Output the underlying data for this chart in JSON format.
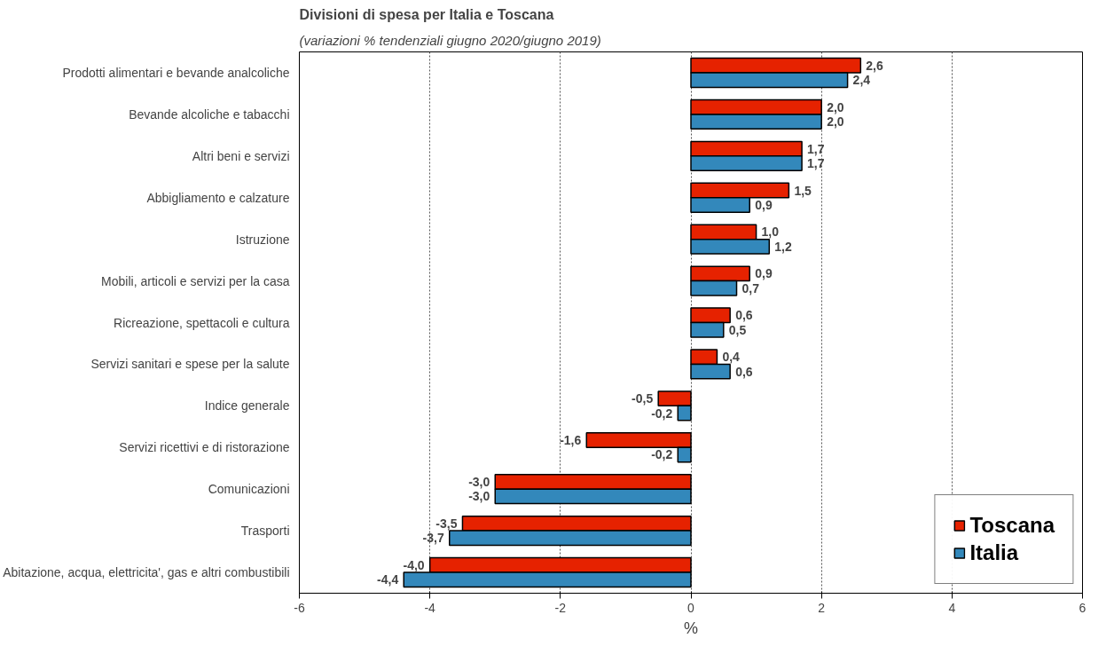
{
  "chart_data": {
    "type": "bar",
    "orientation": "horizontal",
    "title": "Divisioni di spesa per Italia e Toscana",
    "subtitle": "(variazioni % tendenziali giugno 2020/giugno 2019)",
    "xlabel": "%",
    "categories": [
      "Prodotti alimentari e bevande analcoliche",
      "Bevande alcoliche e tabacchi",
      "Altri beni e servizi",
      "Abbigliamento e calzature",
      "Istruzione",
      "Mobili, articoli e servizi per la casa",
      "Ricreazione, spettacoli e cultura",
      "Servizi sanitari e spese per la salute",
      "Indice generale",
      "Servizi ricettivi e di ristorazione",
      "Comunicazioni",
      "Trasporti",
      "Abitazione, acqua, elettricita', gas e altri combustibili"
    ],
    "series": [
      {
        "name": "Toscana",
        "color": "#e62200",
        "values": [
          2.6,
          2.0,
          1.7,
          1.5,
          1.0,
          0.9,
          0.6,
          0.4,
          -0.5,
          -1.6,
          -3.0,
          -3.5,
          -4.0
        ],
        "value_labels": [
          "2,6",
          "2,0",
          "1,7",
          "1,5",
          "1,0",
          "0,9",
          "0,6",
          "0,4",
          "-0,5",
          "-1,6",
          "-3,0",
          "-3,5",
          "-4,0"
        ]
      },
      {
        "name": "Italia",
        "color": "#3388bb",
        "values": [
          2.4,
          2.0,
          1.7,
          0.9,
          1.2,
          0.7,
          0.5,
          0.6,
          -0.2,
          -0.2,
          -3.0,
          -3.7,
          -4.4
        ],
        "value_labels": [
          "2,4",
          "2,0",
          "1,7",
          "0,9",
          "1,2",
          "0,7",
          "0,5",
          "0,6",
          "-0,2",
          "-0,2",
          "-3,0",
          "-3,7",
          "-4,4"
        ]
      }
    ],
    "xlim": [
      -6,
      6
    ],
    "xticks": [
      -6,
      -4,
      -2,
      0,
      2,
      4,
      6
    ],
    "grid": "x",
    "legend": "bottom right"
  }
}
